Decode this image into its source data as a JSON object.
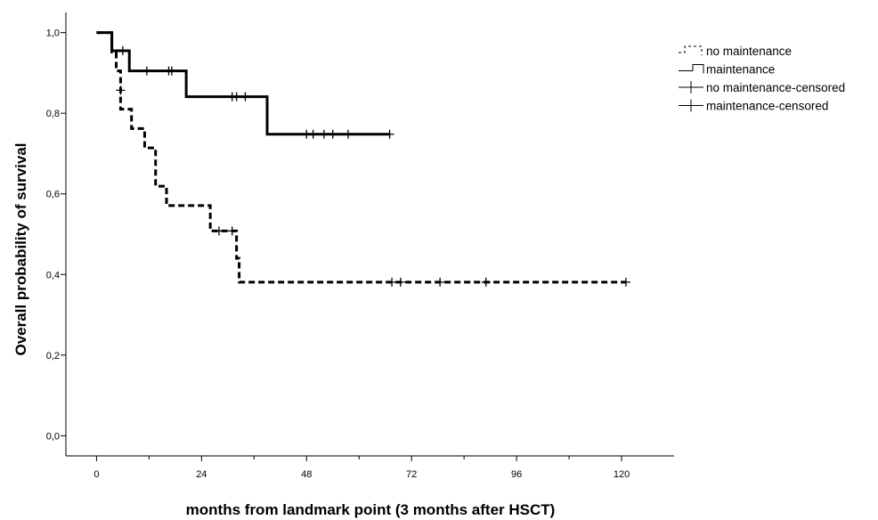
{
  "chart_data": {
    "type": "line",
    "subtype": "kaplan-meier step curves with censoring marks",
    "xlabel": "months from landmark point (3 months after HSCT)",
    "ylabel": "Overall probability of survival",
    "xlim": [
      -7,
      132
    ],
    "ylim": [
      -0.05,
      1.05
    ],
    "x_ticks": [
      0,
      24,
      48,
      72,
      96,
      120
    ],
    "x_tick_labels": [
      "0",
      "24",
      "48",
      "72",
      "96",
      "120"
    ],
    "x_minor_ticks": [
      12,
      36,
      60,
      84,
      108
    ],
    "y_ticks": [
      0.0,
      0.2,
      0.4,
      0.6,
      0.8,
      1.0
    ],
    "y_tick_labels": [
      "0,0",
      "0,2",
      "0,4",
      "0,6",
      "0,8",
      "1,0"
    ],
    "grid": false,
    "legend_position": "top-right",
    "legend": [
      {
        "label": "no maintenance",
        "marker": "dashed-step"
      },
      {
        "label": "maintenance",
        "marker": "solid-step"
      },
      {
        "label": "no maintenance-censored",
        "marker": "plus"
      },
      {
        "label": "maintenance-censored",
        "marker": "plus"
      }
    ],
    "series": [
      {
        "name": "no maintenance",
        "style": "dashed",
        "steps": [
          [
            0,
            1.0
          ],
          [
            3.5,
            0.952
          ],
          [
            4.5,
            0.905
          ],
          [
            5.5,
            0.81
          ],
          [
            8,
            0.762
          ],
          [
            11,
            0.714
          ],
          [
            13.5,
            0.619
          ],
          [
            16,
            0.571
          ],
          [
            26,
            0.508
          ],
          [
            32,
            0.44
          ],
          [
            32.6,
            0.381
          ]
        ],
        "end_x": 121,
        "censored": [
          [
            5.5,
            0.857
          ],
          [
            28,
            0.508
          ],
          [
            31,
            0.508
          ],
          [
            67.5,
            0.381
          ],
          [
            69.5,
            0.381
          ],
          [
            78.5,
            0.381
          ],
          [
            89,
            0.381
          ],
          [
            121,
            0.381
          ]
        ]
      },
      {
        "name": "maintenance",
        "style": "solid",
        "steps": [
          [
            0,
            1.0
          ],
          [
            3.5,
            0.955
          ],
          [
            7.5,
            0.905
          ],
          [
            20.5,
            0.841
          ],
          [
            39,
            0.748
          ]
        ],
        "end_x": 67,
        "censored": [
          [
            6,
            0.955
          ],
          [
            11.5,
            0.905
          ],
          [
            16.5,
            0.905
          ],
          [
            17.2,
            0.905
          ],
          [
            31,
            0.841
          ],
          [
            32,
            0.841
          ],
          [
            34,
            0.841
          ],
          [
            48,
            0.748
          ],
          [
            49.5,
            0.748
          ],
          [
            52,
            0.748
          ],
          [
            54,
            0.748
          ],
          [
            57.5,
            0.748
          ],
          [
            67,
            0.748
          ]
        ]
      }
    ]
  }
}
